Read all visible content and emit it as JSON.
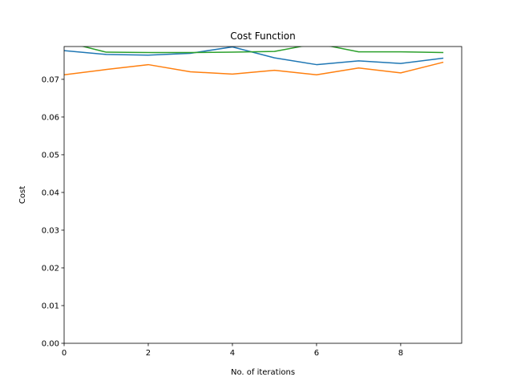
{
  "chart_data": {
    "type": "line",
    "title": "Cost Function",
    "xlabel": "No. of iterations",
    "ylabel": "Cost",
    "xlim": [
      0,
      9.45
    ],
    "ylim": [
      0,
      0.0787
    ],
    "x": [
      0,
      1,
      2,
      3,
      4,
      5,
      6,
      7,
      8,
      9
    ],
    "xticks": [
      "0",
      "2",
      "4",
      "6",
      "8"
    ],
    "xtick_values": [
      0,
      2,
      4,
      6,
      8
    ],
    "yticks": [
      "0.00",
      "0.01",
      "0.02",
      "0.03",
      "0.04",
      "0.05",
      "0.06",
      "0.07"
    ],
    "ytick_values": [
      0,
      0.01,
      0.02,
      0.03,
      0.04,
      0.05,
      0.06,
      0.07
    ],
    "grid": false,
    "series": [
      {
        "color": "#1f77b4",
        "values": [
          0.0776,
          0.0766,
          0.0764,
          0.0769,
          0.0786,
          0.0757,
          0.0739,
          0.0749,
          0.0742,
          0.0756
        ]
      },
      {
        "color": "#ff7f0e",
        "values": [
          0.0712,
          0.0726,
          0.0739,
          0.072,
          0.0714,
          0.0724,
          0.0712,
          0.073,
          0.0717,
          0.0745
        ]
      },
      {
        "color": "#2ca02c",
        "values": [
          0.08,
          0.0772,
          0.0771,
          0.0771,
          0.0772,
          0.0774,
          0.0795,
          0.0773,
          0.0773,
          0.0771
        ]
      }
    ]
  }
}
